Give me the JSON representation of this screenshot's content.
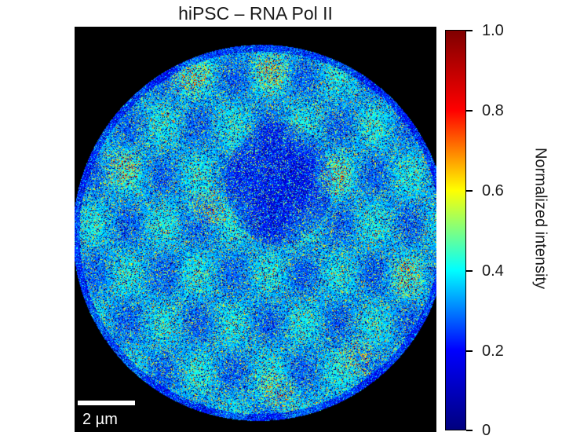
{
  "title": "hiPSC – RNA Pol II",
  "scale_bar": {
    "label": "2 µm"
  },
  "colorbar": {
    "label": "Normalized intensity",
    "ticks": [
      "1.0",
      "0.8",
      "0.6",
      "0.4",
      "0.2",
      "0"
    ],
    "colormap": "jet",
    "colors": [
      "#00007f",
      "#0000ff",
      "#00ffff",
      "#ffff00",
      "#ff0000",
      "#7f0000"
    ]
  }
}
